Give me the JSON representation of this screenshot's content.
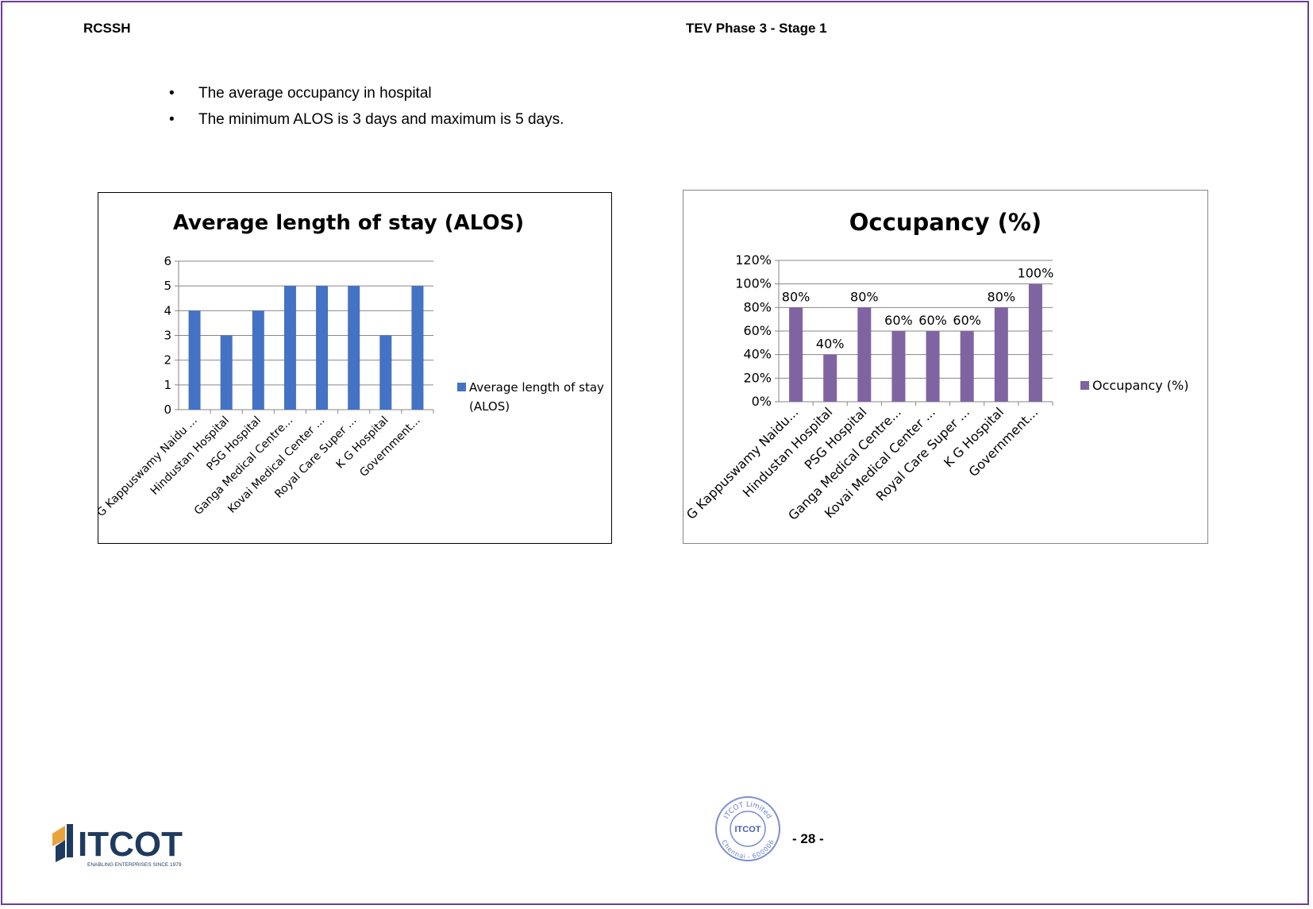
{
  "header": {
    "left": "RCSSH",
    "right": "TEV Phase 3 - Stage 1"
  },
  "bullets": [
    "The average occupancy in hospital",
    "The minimum ALOS is 3 days and maximum is 5 days."
  ],
  "chart_data": [
    {
      "type": "bar",
      "title": "Average length of stay (ALOS)",
      "categories": [
        "G Kappuswamy  Naidu ...",
        "Hindustan Hospital",
        "PSG Hospital",
        "Ganga Medical Centre...",
        "Kovai Medical Center ...",
        "Royal Care Super ...",
        "K G Hospital",
        "Government..."
      ],
      "series": [
        {
          "name": "Average length of stay (ALOS)",
          "values": [
            4,
            3,
            4,
            5,
            5,
            5,
            3,
            5
          ]
        }
      ],
      "ylim": [
        0,
        6
      ],
      "yticks": [
        "0",
        "1",
        "2",
        "3",
        "4",
        "5",
        "6"
      ],
      "grid": true,
      "legend": "right",
      "color": "#4472c4",
      "data_labels": false
    },
    {
      "type": "bar",
      "title": "Occupancy (%)",
      "categories": [
        "G Kappuswamy Naidu...",
        "Hindustan Hospital",
        "PSG Hospital",
        "Ganga Medical Centre...",
        "Kovai Medical Center ...",
        "Royal Care Super ...",
        "K G Hospital",
        "Government..."
      ],
      "series": [
        {
          "name": "Occupancy (%)",
          "values": [
            80,
            40,
            80,
            60,
            60,
            60,
            80,
            100
          ]
        }
      ],
      "data_labels": [
        "80%",
        "40%",
        "80%",
        "60%",
        "60%",
        "60%",
        "80%",
        "100%"
      ],
      "ylim": [
        0,
        120
      ],
      "yticks": [
        "0%",
        "20%",
        "40%",
        "60%",
        "80%",
        "100%",
        "120%"
      ],
      "grid": true,
      "legend": "right",
      "color": "#8064a2"
    }
  ],
  "footer": {
    "logo_text": "ITCOT",
    "logo_tagline": "ENABLING ENTERPRISES SINCE 1979",
    "seal_top": "ITCOT Limited",
    "seal_center": "ITCOT",
    "seal_bottom": "Chennai - 600006",
    "page_number": "- 28 -"
  }
}
